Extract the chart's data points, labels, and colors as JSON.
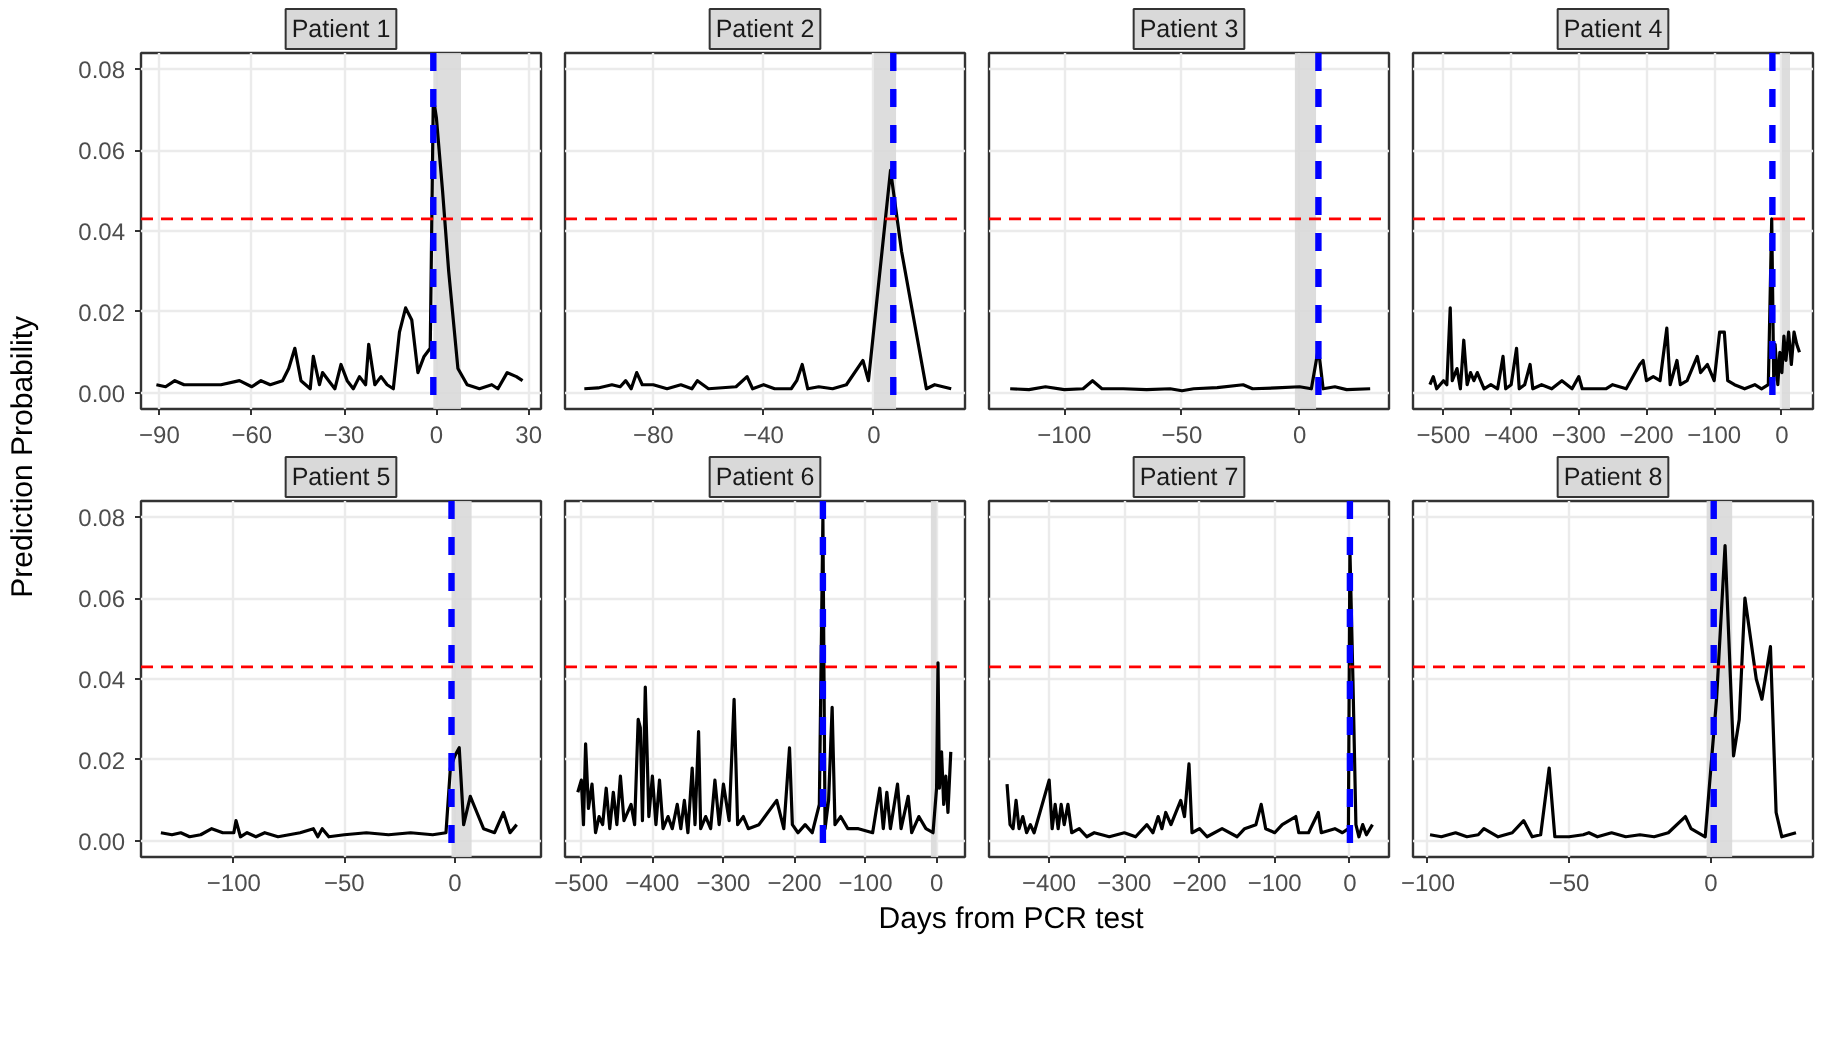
{
  "chart_data": [
    {
      "type": "line",
      "title": "Patient 1",
      "ylabel": "Prediction Probability",
      "grid": true,
      "xlim": [
        -96,
        34
      ],
      "ylim": [
        -0.004,
        0.084
      ],
      "xticks": [
        {
          "value": -90,
          "label": "−90"
        },
        {
          "value": -60,
          "label": "−60"
        },
        {
          "value": -30,
          "label": "−30"
        },
        0,
        30
      ],
      "yticks": [
        {
          "value": 0,
          "label": "0.00"
        },
        {
          "value": 0.02,
          "label": "0.02"
        },
        {
          "value": 0.04,
          "label": "0.04"
        },
        {
          "value": 0.06,
          "label": "0.06"
        },
        {
          "value": 0.08,
          "label": "0.08"
        }
      ],
      "series": [
        {
          "color": "#000000",
          "x": [
            -91,
            -88,
            -85,
            -82,
            -76,
            -70,
            -64,
            -60,
            -57,
            -54,
            -50,
            -48,
            -46,
            -44,
            -41,
            -40,
            -38,
            -37,
            -35,
            -33,
            -31,
            -29,
            -27,
            -25,
            -23,
            -22,
            -20,
            -18,
            -16,
            -14,
            -12,
            -10,
            -8,
            -6,
            -4,
            -2,
            -1,
            0,
            2,
            4,
            7,
            10,
            14,
            18,
            20,
            23,
            26,
            28
          ],
          "values": [
            0.002,
            0.0015,
            0.003,
            0.002,
            0.002,
            0.002,
            0.003,
            0.0015,
            0.003,
            0.002,
            0.003,
            0.006,
            0.011,
            0.003,
            0.001,
            0.009,
            0.002,
            0.005,
            0.003,
            0.001,
            0.007,
            0.003,
            0.001,
            0.004,
            0.002,
            0.012,
            0.002,
            0.004,
            0.002,
            0.001,
            0.015,
            0.021,
            0.018,
            0.005,
            0.009,
            0.011,
            0.073,
            0.068,
            0.05,
            0.03,
            0.006,
            0.002,
            0.001,
            0.002,
            0.001,
            0.005,
            0.004,
            0.003
          ]
        }
      ],
      "ref_lines": [
        {
          "axis": "y",
          "value": 0.043,
          "color": "#ff0000",
          "line_style": "dashed"
        },
        {
          "axis": "x",
          "value": -1,
          "color": "#0000ff",
          "line_style": "dashed"
        }
      ],
      "bands": [
        {
          "axis": "x",
          "from": -1,
          "to": 8,
          "color": "#d9d9d9"
        }
      ]
    },
    {
      "type": "line",
      "title": "Patient 2",
      "tick_labels": "x",
      "grid": true,
      "xlim": [
        -112,
        33
      ],
      "ylim": [
        -0.004,
        0.084
      ],
      "xticks": [
        {
          "value": -80,
          "label": "−80"
        },
        {
          "value": -40,
          "label": "−40"
        },
        0
      ],
      "yticks": [
        {
          "value": 0,
          "label": null
        },
        {
          "value": 0.02,
          "label": null
        },
        {
          "value": 0.04,
          "label": null
        },
        {
          "value": 0.06,
          "label": null
        },
        {
          "value": 0.08,
          "label": null
        }
      ],
      "series": [
        {
          "color": "#000000",
          "x": [
            -105,
            -100,
            -95,
            -92,
            -90,
            -88,
            -86,
            -84,
            -80,
            -75,
            -70,
            -66,
            -64,
            -60,
            -50,
            -46,
            -44,
            -40,
            -36,
            -30,
            -28,
            -26,
            -24,
            -20,
            -15,
            -10,
            -4,
            -2,
            6,
            10,
            19,
            22,
            28
          ],
          "values": [
            0.001,
            0.0012,
            0.002,
            0.0015,
            0.003,
            0.001,
            0.005,
            0.002,
            0.002,
            0.001,
            0.002,
            0.001,
            0.003,
            0.001,
            0.0015,
            0.004,
            0.001,
            0.002,
            0.001,
            0.001,
            0.003,
            0.007,
            0.001,
            0.0015,
            0.001,
            0.002,
            0.008,
            0.003,
            0.055,
            0.035,
            0.001,
            0.002,
            0.001
          ]
        }
      ],
      "ref_lines": [
        {
          "axis": "y",
          "value": 0.043,
          "color": "#ff0000",
          "line_style": "dashed"
        },
        {
          "axis": "x",
          "value": 7,
          "color": "#0000ff",
          "line_style": "dashed"
        }
      ],
      "bands": [
        {
          "axis": "x",
          "from": 0,
          "to": 8,
          "color": "#d9d9d9"
        }
      ]
    },
    {
      "type": "line",
      "title": "Patient 3",
      "tick_labels": "x",
      "grid": true,
      "xlim": [
        -132,
        38
      ],
      "ylim": [
        -0.004,
        0.084
      ],
      "xticks": [
        {
          "value": -100,
          "label": "−100"
        },
        {
          "value": -50,
          "label": "−50"
        },
        0
      ],
      "yticks": [
        {
          "value": 0,
          "label": null
        },
        {
          "value": 0.02,
          "label": null
        },
        {
          "value": 0.04,
          "label": null
        },
        {
          "value": 0.06,
          "label": null
        },
        {
          "value": 0.08,
          "label": null
        }
      ],
      "series": [
        {
          "color": "#000000",
          "x": [
            -123,
            -115,
            -108,
            -100,
            -92,
            -88,
            -84,
            -75,
            -65,
            -55,
            -50,
            -45,
            -35,
            -24,
            -20,
            -10,
            0,
            5,
            8,
            10,
            15,
            20,
            30
          ],
          "values": [
            0.001,
            0.0008,
            0.0015,
            0.0008,
            0.001,
            0.003,
            0.001,
            0.001,
            0.0008,
            0.001,
            0.0005,
            0.001,
            0.0013,
            0.002,
            0.001,
            0.0012,
            0.0015,
            0.001,
            0.011,
            0.001,
            0.0015,
            0.0008,
            0.001
          ]
        }
      ],
      "ref_lines": [
        {
          "axis": "y",
          "value": 0.043,
          "color": "#ff0000",
          "line_style": "dashed"
        },
        {
          "axis": "x",
          "value": 8,
          "color": "#0000ff",
          "line_style": "dashed"
        }
      ],
      "bands": [
        {
          "axis": "x",
          "from": -2,
          "to": 7,
          "color": "#d9d9d9"
        }
      ]
    },
    {
      "type": "line",
      "title": "Patient 4",
      "tick_labels": "x",
      "grid": true,
      "xlim": [
        -545,
        46
      ],
      "ylim": [
        -0.004,
        0.084
      ],
      "xticks": [
        {
          "value": -500,
          "label": "−500"
        },
        {
          "value": -400,
          "label": "−400"
        },
        {
          "value": -300,
          "label": "−300"
        },
        {
          "value": -200,
          "label": "−200"
        },
        {
          "value": -100,
          "label": "−100"
        },
        0
      ],
      "yticks": [
        {
          "value": 0,
          "label": null
        },
        {
          "value": 0.02,
          "label": null
        },
        {
          "value": 0.04,
          "label": null
        },
        {
          "value": 0.06,
          "label": null
        },
        {
          "value": 0.08,
          "label": null
        }
      ],
      "series": [
        {
          "color": "#000000",
          "x": [
            -520,
            -515,
            -510,
            -500,
            -495,
            -490,
            -487,
            -480,
            -475,
            -470,
            -465,
            -460,
            -455,
            -450,
            -440,
            -430,
            -420,
            -412,
            -408,
            -400,
            -392,
            -388,
            -380,
            -372,
            -368,
            -355,
            -340,
            -325,
            -310,
            -300,
            -295,
            -280,
            -260,
            -250,
            -230,
            -210,
            -205,
            -200,
            -190,
            -180,
            -170,
            -165,
            -155,
            -150,
            -140,
            -125,
            -120,
            -110,
            -100,
            -92,
            -85,
            -80,
            -70,
            -55,
            -40,
            -30,
            -20,
            -15,
            -12,
            -10,
            -6,
            -3,
            0,
            3,
            6,
            10,
            14,
            18,
            22,
            26
          ],
          "values": [
            0.002,
            0.004,
            0.001,
            0.003,
            0.002,
            0.021,
            0.003,
            0.006,
            0.001,
            0.013,
            0.002,
            0.005,
            0.003,
            0.005,
            0.001,
            0.002,
            0.001,
            0.009,
            0.001,
            0.002,
            0.011,
            0.001,
            0.002,
            0.007,
            0.001,
            0.002,
            0.001,
            0.003,
            0.001,
            0.004,
            0.001,
            0.001,
            0.001,
            0.002,
            0.001,
            0.007,
            0.008,
            0.003,
            0.004,
            0.003,
            0.016,
            0.002,
            0.008,
            0.002,
            0.003,
            0.009,
            0.005,
            0.007,
            0.003,
            0.015,
            0.015,
            0.003,
            0.002,
            0.001,
            0.002,
            0.001,
            0.002,
            0.043,
            0.003,
            0.012,
            0.002,
            0.01,
            0.005,
            0.014,
            0.008,
            0.015,
            0.007,
            0.015,
            0.012,
            0.01
          ]
        }
      ],
      "ref_lines": [
        {
          "axis": "y",
          "value": 0.043,
          "color": "#ff0000",
          "line_style": "dashed"
        },
        {
          "axis": "x",
          "value": -14,
          "color": "#0000ff",
          "line_style": "dashed"
        }
      ],
      "bands": [
        {
          "axis": "x",
          "from": 0,
          "to": 12,
          "color": "#d9d9d9"
        }
      ]
    },
    {
      "type": "line",
      "title": "Patient 5",
      "grid": true,
      "xlim": [
        -142,
        39
      ],
      "ylim": [
        -0.004,
        0.084
      ],
      "xticks": [
        {
          "value": -100,
          "label": "−100"
        },
        {
          "value": -50,
          "label": "−50"
        },
        0
      ],
      "yticks": [
        {
          "value": 0,
          "label": "0.00"
        },
        {
          "value": 0.02,
          "label": "0.02"
        },
        {
          "value": 0.04,
          "label": "0.04"
        },
        {
          "value": 0.06,
          "label": "0.06"
        },
        {
          "value": 0.08,
          "label": "0.08"
        }
      ],
      "series": [
        {
          "color": "#000000",
          "x": [
            -133,
            -128,
            -124,
            -120,
            -115,
            -110,
            -105,
            -100,
            -99,
            -97,
            -94,
            -90,
            -86,
            -80,
            -70,
            -64,
            -62,
            -60,
            -57,
            -50,
            -40,
            -30,
            -20,
            -10,
            -4,
            -2,
            0,
            2,
            4,
            7,
            10,
            13,
            18,
            22,
            25,
            28
          ],
          "values": [
            0.002,
            0.0015,
            0.002,
            0.001,
            0.0015,
            0.003,
            0.002,
            0.002,
            0.005,
            0.001,
            0.002,
            0.001,
            0.002,
            0.001,
            0.002,
            0.003,
            0.001,
            0.003,
            0.001,
            0.0015,
            0.002,
            0.0015,
            0.002,
            0.0015,
            0.002,
            0.018,
            0.021,
            0.023,
            0.004,
            0.011,
            0.007,
            0.003,
            0.002,
            0.007,
            0.002,
            0.004
          ]
        }
      ],
      "ref_lines": [
        {
          "axis": "y",
          "value": 0.043,
          "color": "#ff0000",
          "line_style": "dashed"
        },
        {
          "axis": "x",
          "value": -1.5,
          "color": "#0000ff",
          "line_style": "dashed"
        }
      ],
      "bands": [
        {
          "axis": "x",
          "from": -1.5,
          "to": 7.6,
          "color": "#d9d9d9"
        }
      ]
    },
    {
      "type": "line",
      "title": "Patient 6",
      "xlabel": "Days from PCR test",
      "tick_labels": "x",
      "grid": true,
      "xlim": [
        -523,
        40
      ],
      "ylim": [
        -0.004,
        0.084
      ],
      "xticks": [
        {
          "value": -500,
          "label": "−500"
        },
        {
          "value": -400,
          "label": "−400"
        },
        {
          "value": -300,
          "label": "−300"
        },
        {
          "value": -200,
          "label": "−200"
        },
        {
          "value": -100,
          "label": "−100"
        },
        0
      ],
      "yticks": [
        {
          "value": 0,
          "label": null
        },
        {
          "value": 0.02,
          "label": null
        },
        {
          "value": 0.04,
          "label": null
        },
        {
          "value": 0.06,
          "label": null
        },
        {
          "value": 0.08,
          "label": null
        }
      ],
      "series": [
        {
          "color": "#000000",
          "x": [
            -505,
            -500,
            -497,
            -494,
            -490,
            -485,
            -480,
            -475,
            -470,
            -465,
            -460,
            -455,
            -450,
            -445,
            -440,
            -430,
            -425,
            -420,
            -417,
            -414,
            -410,
            -405,
            -400,
            -395,
            -390,
            -385,
            -378,
            -372,
            -365,
            -360,
            -355,
            -350,
            -344,
            -340,
            -335,
            -332,
            -325,
            -318,
            -312,
            -306,
            -300,
            -292,
            -285,
            -280,
            -272,
            -265,
            -250,
            -225,
            -215,
            -207,
            -203,
            -195,
            -185,
            -175,
            -165,
            -160,
            -157,
            -152,
            -147,
            -143,
            -135,
            -125,
            -110,
            -90,
            -80,
            -75,
            -70,
            -65,
            -55,
            -50,
            -40,
            -35,
            -25,
            -15,
            -5,
            0,
            2,
            4,
            7,
            10,
            13,
            16,
            20
          ],
          "values": [
            0.012,
            0.015,
            0.004,
            0.024,
            0.008,
            0.014,
            0.002,
            0.006,
            0.004,
            0.013,
            0.003,
            0.012,
            0.004,
            0.016,
            0.005,
            0.009,
            0.004,
            0.03,
            0.028,
            0.005,
            0.038,
            0.006,
            0.016,
            0.004,
            0.015,
            0.003,
            0.006,
            0.003,
            0.009,
            0.003,
            0.01,
            0.002,
            0.018,
            0.004,
            0.027,
            0.003,
            0.006,
            0.003,
            0.015,
            0.004,
            0.014,
            0.005,
            0.035,
            0.004,
            0.006,
            0.003,
            0.004,
            0.01,
            0.003,
            0.023,
            0.004,
            0.002,
            0.004,
            0.002,
            0.009,
            0.08,
            0.003,
            0.01,
            0.033,
            0.004,
            0.006,
            0.003,
            0.003,
            0.002,
            0.013,
            0.003,
            0.012,
            0.003,
            0.014,
            0.003,
            0.011,
            0.002,
            0.006,
            0.003,
            0.002,
            0.013,
            0.044,
            0.013,
            0.022,
            0.009,
            0.016,
            0.007,
            0.022
          ]
        }
      ],
      "ref_lines": [
        {
          "axis": "y",
          "value": 0.043,
          "color": "#ff0000",
          "line_style": "dashed"
        },
        {
          "axis": "x",
          "value": -160,
          "color": "#0000ff",
          "line_style": "dashed"
        }
      ],
      "bands": [
        {
          "axis": "x",
          "from": -8,
          "to": 0,
          "color": "#d9d9d9"
        }
      ]
    },
    {
      "type": "line",
      "title": "Patient 7",
      "tick_labels": "x",
      "grid": true,
      "xlim": [
        -480,
        52
      ],
      "ylim": [
        -0.004,
        0.084
      ],
      "xticks": [
        {
          "value": -400,
          "label": "−400"
        },
        {
          "value": -300,
          "label": "−300"
        },
        {
          "value": -200,
          "label": "−200"
        },
        {
          "value": -100,
          "label": "−100"
        },
        0
      ],
      "yticks": [
        {
          "value": 0,
          "label": null
        },
        {
          "value": 0.02,
          "label": null
        },
        {
          "value": 0.04,
          "label": null
        },
        {
          "value": 0.06,
          "label": null
        },
        {
          "value": 0.08,
          "label": null
        }
      ],
      "series": [
        {
          "color": "#000000",
          "x": [
            -456,
            -452,
            -448,
            -444,
            -440,
            -435,
            -430,
            -425,
            -420,
            -400,
            -396,
            -392,
            -388,
            -384,
            -380,
            -375,
            -370,
            -360,
            -350,
            -340,
            -320,
            -300,
            -285,
            -270,
            -262,
            -255,
            -250,
            -245,
            -238,
            -225,
            -220,
            -214,
            -210,
            -200,
            -190,
            -170,
            -150,
            -140,
            -125,
            -118,
            -112,
            -100,
            -90,
            -72,
            -68,
            -55,
            -42,
            -38,
            -20,
            -10,
            -2,
            0,
            4,
            8,
            12,
            17,
            22,
            30
          ],
          "values": [
            0.014,
            0.004,
            0.003,
            0.01,
            0.003,
            0.006,
            0.002,
            0.004,
            0.002,
            0.015,
            0.003,
            0.009,
            0.003,
            0.009,
            0.004,
            0.009,
            0.002,
            0.003,
            0.001,
            0.002,
            0.001,
            0.002,
            0.001,
            0.004,
            0.002,
            0.006,
            0.003,
            0.007,
            0.004,
            0.01,
            0.006,
            0.019,
            0.002,
            0.003,
            0.001,
            0.003,
            0.001,
            0.003,
            0.004,
            0.009,
            0.003,
            0.002,
            0.004,
            0.006,
            0.002,
            0.002,
            0.007,
            0.002,
            0.003,
            0.002,
            0.003,
            0.072,
            0.04,
            0.004,
            0.001,
            0.004,
            0.0015,
            0.004
          ]
        }
      ],
      "ref_lines": [
        {
          "axis": "y",
          "value": 0.043,
          "color": "#ff0000",
          "line_style": "dashed"
        },
        {
          "axis": "x",
          "value": 0,
          "color": "#0000ff",
          "line_style": "dashed"
        }
      ]
    },
    {
      "type": "line",
      "title": "Patient 8",
      "tick_labels": "x",
      "grid": true,
      "xlim": [
        -105,
        36
      ],
      "ylim": [
        -0.004,
        0.084
      ],
      "xticks": [
        {
          "value": -100,
          "label": "−100"
        },
        {
          "value": -50,
          "label": "−50"
        },
        0
      ],
      "yticks": [
        {
          "value": 0,
          "label": null
        },
        {
          "value": 0.02,
          "label": null
        },
        {
          "value": 0.04,
          "label": null
        },
        {
          "value": 0.06,
          "label": null
        },
        {
          "value": 0.08,
          "label": null
        }
      ],
      "series": [
        {
          "color": "#000000",
          "x": [
            -99,
            -95,
            -90,
            -86,
            -82,
            -80,
            -75,
            -70,
            -66,
            -63,
            -60,
            -57,
            -55,
            -50,
            -45,
            -43,
            -40,
            -35,
            -30,
            -25,
            -20,
            -15,
            -9,
            -7,
            -2,
            2,
            5,
            8,
            10,
            12,
            16,
            18,
            21,
            23,
            25,
            30
          ],
          "values": [
            0.0015,
            0.001,
            0.002,
            0.001,
            0.0015,
            0.003,
            0.001,
            0.002,
            0.005,
            0.001,
            0.0015,
            0.018,
            0.001,
            0.001,
            0.0015,
            0.002,
            0.001,
            0.002,
            0.001,
            0.0015,
            0.001,
            0.002,
            0.006,
            0.003,
            0.001,
            0.035,
            0.073,
            0.021,
            0.03,
            0.06,
            0.04,
            0.035,
            0.048,
            0.007,
            0.001,
            0.002
          ]
        }
      ],
      "ref_lines": [
        {
          "axis": "y",
          "value": 0.043,
          "color": "#ff0000",
          "line_style": "dashed"
        },
        {
          "axis": "x",
          "value": 1,
          "color": "#0000ff",
          "line_style": "dashed"
        }
      ],
      "bands": [
        {
          "axis": "x",
          "from": -1.5,
          "to": 7.5,
          "color": "#d9d9d9"
        }
      ]
    }
  ]
}
